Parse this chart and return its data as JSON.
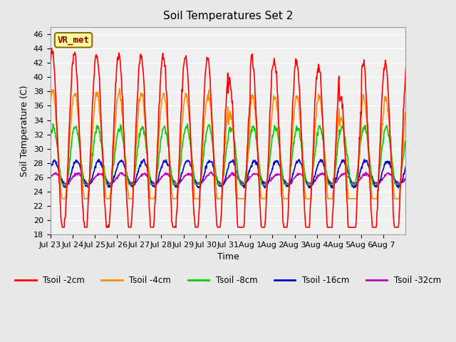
{
  "title": "Soil Temperatures Set 2",
  "xlabel": "Time",
  "ylabel": "Soil Temperature (C)",
  "ylim": [
    18,
    47
  ],
  "yticks": [
    18,
    20,
    22,
    24,
    26,
    28,
    30,
    32,
    34,
    36,
    38,
    40,
    42,
    44,
    46
  ],
  "annotation_text": "VR_met",
  "annotation_color": "#8B0000",
  "annotation_bg": "#FFFF99",
  "bg_color": "#E8E8E8",
  "plot_bg_color": "#F0F0F0",
  "colors": {
    "2cm": "#FF0000",
    "4cm": "#FF8C00",
    "8cm": "#00CC00",
    "16cm": "#0000CC",
    "32cm": "#BB00BB"
  },
  "legend_labels": [
    "Tsoil -2cm",
    "Tsoil -4cm",
    "Tsoil -8cm",
    "Tsoil -16cm",
    "Tsoil -32cm"
  ],
  "x_tick_labels": [
    "Jul 23",
    "Jul 24",
    "Jul 25",
    "Jul 26",
    "Jul 27",
    "Jul 28",
    "Jul 29",
    "Jul 30",
    "Jul 31",
    "Aug 1",
    "Aug 2",
    "Aug 3",
    "Aug 4",
    "Aug 5",
    "Aug 6",
    "Aug 7"
  ],
  "num_days": 16
}
